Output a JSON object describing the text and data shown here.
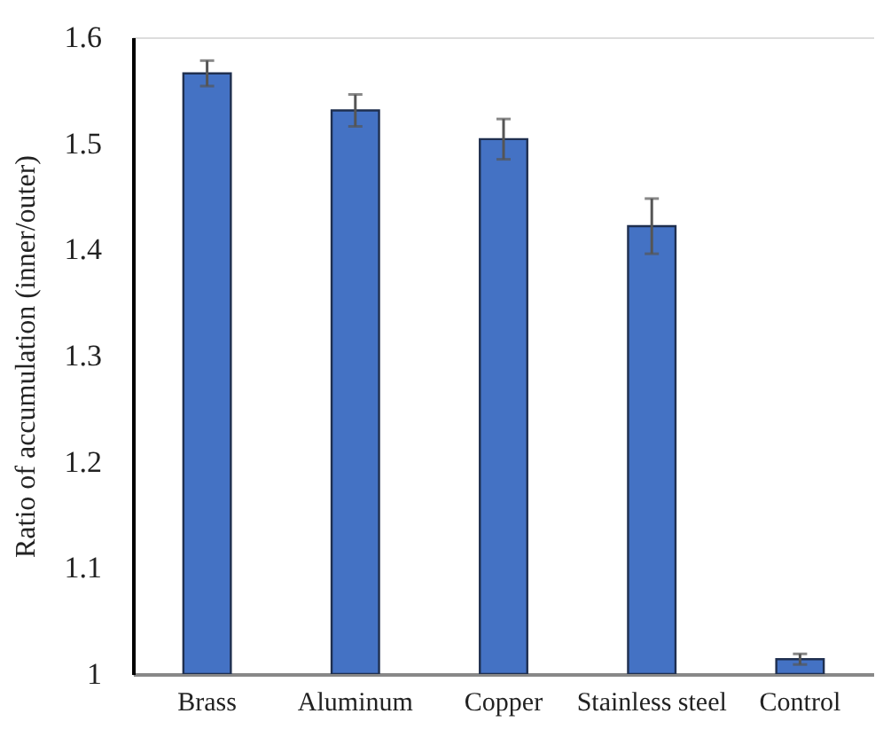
{
  "chart_data": {
    "type": "bar",
    "ylabel": "Ratio of accumulation (inner/outer)",
    "categories": [
      "Brass",
      "Aluminum",
      "Copper",
      "Stainless steel",
      "Control"
    ],
    "values": [
      1.566,
      1.531,
      1.504,
      1.422,
      1.014
    ],
    "errors": [
      0.012,
      0.015,
      0.019,
      0.026,
      0.005
    ],
    "color": "#4472c4",
    "ylim": [
      1,
      1.6
    ],
    "yticks": [
      1,
      1.1,
      1.2,
      1.3,
      1.4,
      1.5,
      1.6
    ],
    "grid": false
  }
}
